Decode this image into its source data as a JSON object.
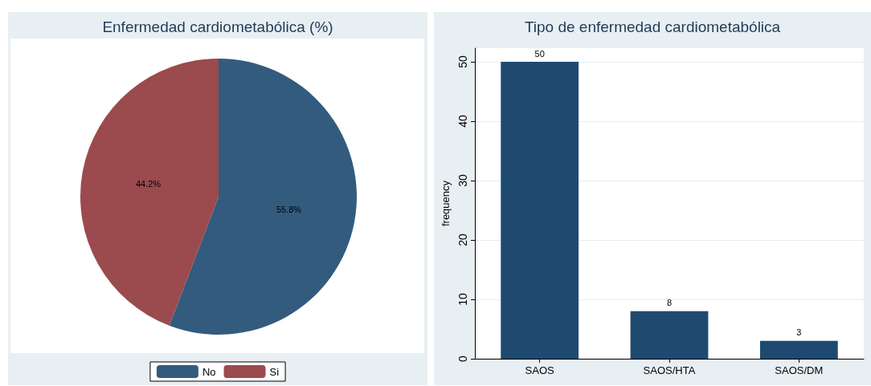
{
  "chart_data": [
    {
      "type": "pie",
      "title": "Enfermedad cardiometabólica (%)",
      "categories": [
        "No",
        "Si"
      ],
      "values": [
        55.8,
        44.2
      ],
      "colors": [
        "#335b7e",
        "#9b4a4e"
      ],
      "value_labels": [
        "55.8%",
        "44.2%"
      ],
      "legend": "bottom"
    },
    {
      "type": "bar",
      "title": "Tipo de enfermedad cardiometabólica",
      "ylabel": "frequency",
      "categories": [
        "SAOS",
        "SAOS/HTA",
        "SAOS/DM"
      ],
      "values": [
        50,
        8,
        3
      ],
      "color": "#1e4a70",
      "ylim": [
        0,
        52.3
      ],
      "yticks": [
        0,
        10,
        20,
        30,
        40,
        50
      ],
      "grid": "y",
      "data_labels": true,
      "legend": false
    }
  ]
}
